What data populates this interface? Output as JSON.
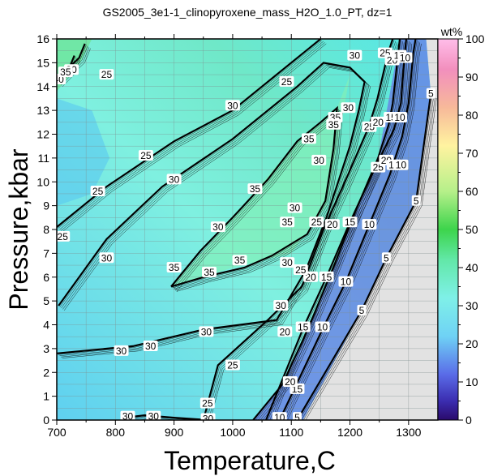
{
  "chart_data": {
    "type": "heatmap",
    "title": "GS2005_3e1-1_clinopyroxene_mass_H2O_1.0_PT, dz=1",
    "xlabel": "Temperature,C",
    "ylabel": "Pressure,kbar",
    "xlim": [
      700,
      1350
    ],
    "ylim": [
      0,
      16
    ],
    "x_ticks": [
      700,
      800,
      900,
      1000,
      1100,
      1200,
      1300
    ],
    "y_ticks": [
      0,
      1,
      2,
      3,
      4,
      5,
      6,
      7,
      8,
      9,
      10,
      11,
      12,
      13,
      14,
      15,
      16
    ],
    "colorbar": {
      "unit": "wt%",
      "range": [
        0,
        100
      ],
      "ticks": [
        0,
        10,
        20,
        30,
        40,
        50,
        60,
        70,
        80,
        90,
        100
      ]
    },
    "grid": true,
    "contour_interval": 1,
    "labeled_contours": [
      {
        "level": 5,
        "points": [
          [
            1110,
            0
          ],
          [
            1220,
            4.6
          ],
          [
            1262,
            6.8
          ],
          [
            1313,
            9.2
          ],
          [
            1338,
            13.7
          ]
        ]
      },
      {
        "level": 10,
        "points": [
          [
            1080,
            0
          ],
          [
            1155,
            3.9
          ],
          [
            1193,
            5.8
          ],
          [
            1233,
            8.2
          ],
          [
            1268,
            10.3
          ],
          [
            1289,
            11.9
          ],
          [
            1300,
            13.3
          ],
          [
            1308,
            15.4
          ],
          [
            1312,
            16
          ]
        ]
      },
      {
        "level": 15,
        "points": [
          [
            1057,
            0
          ],
          [
            1121,
            3.9
          ],
          [
            1160,
            6.0
          ],
          [
            1200,
            8.3
          ],
          [
            1245,
            10.7
          ],
          [
            1275,
            12.2
          ],
          [
            1287,
            13.3
          ],
          [
            1293,
            15.3
          ],
          [
            1296,
            16
          ]
        ]
      },
      {
        "level": 20,
        "points": [
          [
            1035,
            0
          ],
          [
            1085,
            1.5
          ],
          [
            1128,
            3.8
          ],
          [
            1170,
            6.3
          ],
          [
            1210,
            8.8
          ],
          [
            1248,
            11.0
          ],
          [
            1266,
            12.4
          ],
          [
            1273,
            13.3
          ],
          [
            1281,
            15.1
          ],
          [
            1285,
            16
          ]
        ]
      },
      {
        "level": 25,
        "points": [
          [
            950,
            0
          ],
          [
            975,
            2.3
          ],
          [
            1060,
            4.2
          ],
          [
            1118,
            5.6
          ],
          [
            1155,
            8.0
          ],
          [
            1195,
            10.2
          ],
          [
            1232,
            12.3
          ],
          [
            1247,
            13.5
          ],
          [
            1265,
            15.4
          ],
          [
            1273,
            16
          ]
        ]
      },
      {
        "level": 25,
        "points": [
          [
            700,
            8.1
          ],
          [
            785,
            9.8
          ],
          [
            900,
            11.7
          ],
          [
            1000,
            13.0
          ],
          [
            1100,
            15.0
          ],
          [
            1150,
            16
          ]
        ]
      },
      {
        "level": 30,
        "points": [
          [
            703,
            4.8
          ],
          [
            785,
            7.6
          ],
          [
            880,
            9.8
          ],
          [
            1000,
            11.8
          ],
          [
            1110,
            14.0
          ],
          [
            1155,
            15.0
          ],
          [
            1200,
            14.8
          ],
          [
            1225,
            14.2
          ],
          [
            1215,
            13.0
          ],
          [
            1200,
            11.5
          ],
          [
            1160,
            8.5
          ],
          [
            1125,
            6.3
          ],
          [
            1075,
            4.2
          ],
          [
            950,
            3.8
          ],
          [
            830,
            3.1
          ],
          [
            700,
            2.8
          ]
        ]
      },
      {
        "level": 35,
        "points": [
          [
            895,
            5.6
          ],
          [
            945,
            7.1
          ],
          [
            1000,
            8.5
          ],
          [
            1060,
            10.1
          ],
          [
            1110,
            11.7
          ],
          [
            1150,
            12.5
          ],
          [
            1178,
            13.1
          ],
          [
            1172,
            11.4
          ],
          [
            1158,
            9.2
          ],
          [
            1127,
            7.8
          ],
          [
            1067,
            6.9
          ],
          [
            1020,
            6.4
          ],
          [
            950,
            6.0
          ],
          [
            895,
            5.6
          ]
        ]
      },
      {
        "level": 30,
        "points": [
          [
            815,
            0.1
          ],
          [
            850,
            0.2
          ],
          [
            900,
            0.1
          ],
          [
            960,
            0.0
          ]
        ]
      },
      {
        "level": 40,
        "points": [
          [
            700,
            14.2
          ],
          [
            720,
            14.7
          ],
          [
            730,
            15.3
          ]
        ]
      },
      {
        "level": 45,
        "points": [
          [
            712,
            14.6
          ],
          [
            738,
            15.2
          ],
          [
            748,
            15.8
          ]
        ]
      }
    ],
    "contour_labels": [
      {
        "text": "5",
        "x": 1110,
        "y": 0.1
      },
      {
        "text": "10",
        "x": 1080,
        "y": 0.1
      },
      {
        "text": "15",
        "x": 1110,
        "y": 1.3
      },
      {
        "text": "20",
        "x": 1098,
        "y": 1.6
      },
      {
        "text": "25",
        "x": 957,
        "y": 0.7
      },
      {
        "text": "30",
        "x": 821,
        "y": 0.15
      },
      {
        "text": "30",
        "x": 865,
        "y": 0.15
      },
      {
        "text": "30",
        "x": 958,
        "y": 0.05
      },
      {
        "text": "5",
        "x": 1220,
        "y": 4.6
      },
      {
        "text": "10",
        "x": 1153,
        "y": 3.9
      },
      {
        "text": "15",
        "x": 1120,
        "y": 3.9
      },
      {
        "text": "20",
        "x": 1089,
        "y": 3.7
      },
      {
        "text": "25",
        "x": 1000,
        "y": 2.3
      },
      {
        "text": "30",
        "x": 810,
        "y": 2.9
      },
      {
        "text": "30",
        "x": 860,
        "y": 3.1
      },
      {
        "text": "30",
        "x": 955,
        "y": 3.7
      },
      {
        "text": "30",
        "x": 1082,
        "y": 4.8
      },
      {
        "text": "5",
        "x": 1262,
        "y": 6.8
      },
      {
        "text": "10",
        "x": 1193,
        "y": 5.8
      },
      {
        "text": "15",
        "x": 1160,
        "y": 6.0
      },
      {
        "text": "20",
        "x": 1133,
        "y": 6.0
      },
      {
        "text": "25",
        "x": 1116,
        "y": 6.3
      },
      {
        "text": "30",
        "x": 1093,
        "y": 6.6
      },
      {
        "text": "35",
        "x": 1012,
        "y": 6.7
      },
      {
        "text": "35",
        "x": 960,
        "y": 6.2
      },
      {
        "text": "35",
        "x": 900,
        "y": 6.4
      },
      {
        "text": "30",
        "x": 785,
        "y": 6.8
      },
      {
        "text": "25",
        "x": 710,
        "y": 7.7
      },
      {
        "text": "5",
        "x": 1313,
        "y": 9.2
      },
      {
        "text": "10",
        "x": 1233,
        "y": 8.2
      },
      {
        "text": "15",
        "x": 1200,
        "y": 8.3
      },
      {
        "text": "20",
        "x": 1170,
        "y": 8.2
      },
      {
        "text": "25",
        "x": 1143,
        "y": 8.3
      },
      {
        "text": "30",
        "x": 1106,
        "y": 8.9
      },
      {
        "text": "35",
        "x": 1093,
        "y": 8.3
      },
      {
        "text": "35",
        "x": 1038,
        "y": 9.7
      },
      {
        "text": "30",
        "x": 975,
        "y": 8.1
      },
      {
        "text": "30",
        "x": 900,
        "y": 10.1
      },
      {
        "text": "25",
        "x": 770,
        "y": 9.6
      },
      {
        "text": "30",
        "x": 1147,
        "y": 10.9
      },
      {
        "text": "35",
        "x": 1130,
        "y": 11.8
      },
      {
        "text": "25",
        "x": 1248,
        "y": 10.6
      },
      {
        "text": "20",
        "x": 1262,
        "y": 10.9
      },
      {
        "text": "15",
        "x": 1275,
        "y": 10.7
      },
      {
        "text": "10",
        "x": 1287,
        "y": 10.7
      },
      {
        "text": "35",
        "x": 1175,
        "y": 12.7
      },
      {
        "text": "35",
        "x": 1172,
        "y": 12.4
      },
      {
        "text": "25",
        "x": 1233,
        "y": 12.3
      },
      {
        "text": "20",
        "x": 1248,
        "y": 12.5
      },
      {
        "text": "15",
        "x": 1270,
        "y": 12.7
      },
      {
        "text": "10",
        "x": 1285,
        "y": 12.7
      },
      {
        "text": "5",
        "x": 1338,
        "y": 13.7
      },
      {
        "text": "30",
        "x": 1000,
        "y": 13.2
      },
      {
        "text": "25",
        "x": 852,
        "y": 11.1
      },
      {
        "text": "30",
        "x": 1197,
        "y": 13.1
      },
      {
        "text": "25",
        "x": 1092,
        "y": 14.2
      },
      {
        "text": "30",
        "x": 1208,
        "y": 15.3
      },
      {
        "text": "25",
        "x": 1260,
        "y": 15.4
      },
      {
        "text": "20",
        "x": 1272,
        "y": 15.1
      },
      {
        "text": "15",
        "x": 1284,
        "y": 15.3
      },
      {
        "text": "10",
        "x": 1294,
        "y": 15.2
      },
      {
        "text": "25",
        "x": 785,
        "y": 14.5
      },
      {
        "text": "30",
        "x": 725,
        "y": 14.7
      },
      {
        "text": "40",
        "x": 703,
        "y": 14.3
      },
      {
        "text": "35",
        "x": 715,
        "y": 14.6
      }
    ]
  }
}
